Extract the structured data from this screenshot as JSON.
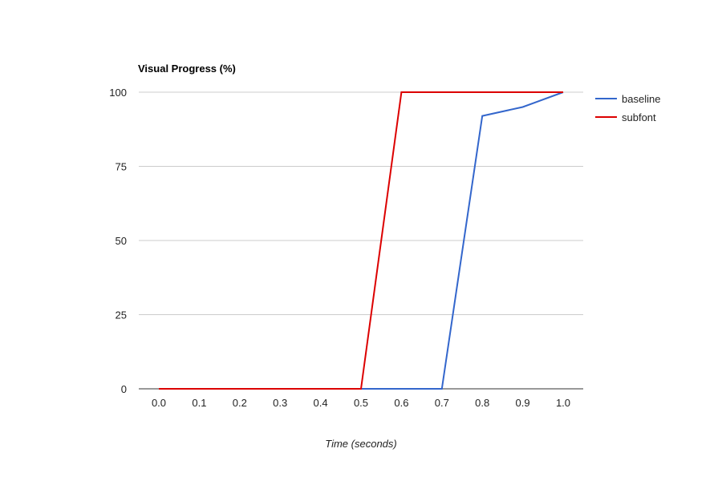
{
  "chart_data": {
    "type": "line",
    "title": "Visual Progress (%)",
    "xlabel": "Time (seconds)",
    "ylabel": "",
    "x": [
      0.0,
      0.1,
      0.2,
      0.3,
      0.4,
      0.5,
      0.6,
      0.7,
      0.8,
      0.9,
      1.0
    ],
    "x_tick_labels": [
      "0.0",
      "0.1",
      "0.2",
      "0.3",
      "0.4",
      "0.5",
      "0.6",
      "0.7",
      "0.8",
      "0.9",
      "1.0"
    ],
    "xlim": [
      0.0,
      1.0
    ],
    "y_ticks": [
      0,
      25,
      50,
      75,
      100
    ],
    "y_tick_labels": [
      "0",
      "25",
      "50",
      "75",
      "100"
    ],
    "ylim": [
      0,
      100
    ],
    "grid": true,
    "legend_position": "right",
    "series": [
      {
        "name": "baseline",
        "color": "#3366cc",
        "values": [
          0,
          0,
          0,
          0,
          0,
          0,
          0,
          0,
          92,
          95,
          100
        ]
      },
      {
        "name": "subfont",
        "color": "#dc0000",
        "values": [
          0,
          0,
          0,
          0,
          0,
          0,
          100,
          100,
          100,
          100,
          100
        ]
      }
    ]
  }
}
